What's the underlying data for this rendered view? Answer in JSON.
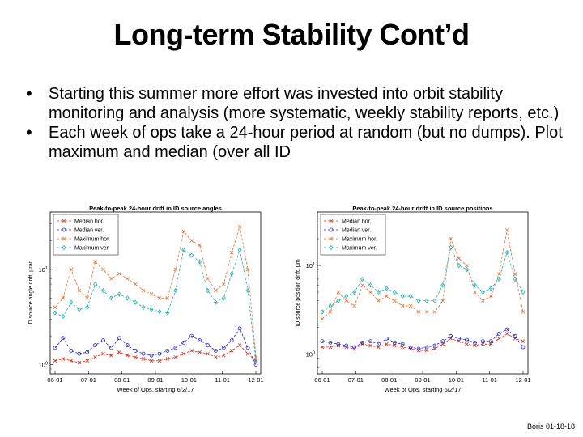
{
  "slide": {
    "title": "Long-term Stability Cont’d",
    "bullets": [
      "Starting this summer more effort was invested into orbit stability monitoring and analysis (more systematic, weekly stability reports, etc.)",
      "Each week of ops take a 24-hour period at random (but no dumps). Plot maximum and median (over all ID"
    ],
    "footer": "Boris 01-18-18"
  },
  "colors": {
    "red": "#d03020",
    "blue": "#2a2ad0",
    "orange": "#e07030",
    "teal": "#20b0b0"
  },
  "chart_data": [
    {
      "type": "line",
      "title": "Peak-to-peak 24-hour drift in ID source angles",
      "xlabel": "Week of Ops, starting 6/2/17",
      "ylabel": "ID source angle drift, µrad",
      "yscale": "log",
      "ylim": [
        0.8,
        40
      ],
      "y_ticks": [
        "10^0",
        "10^1"
      ],
      "x_ticks": [
        "06-01",
        "07-01",
        "08-01",
        "09-01",
        "10-01",
        "11-01",
        "12-01"
      ],
      "legend": "top-left",
      "series": [
        {
          "name": "Median hor.",
          "color": "#d03020",
          "marker": "x",
          "x": [
            0,
            1,
            2,
            3,
            4,
            5,
            6,
            7,
            8,
            9,
            10,
            11,
            12,
            13,
            14,
            15,
            16,
            17,
            18,
            19,
            20,
            21,
            22,
            23,
            24,
            25
          ],
          "values": [
            1.1,
            1.15,
            1.1,
            1.05,
            1.1,
            1.2,
            1.3,
            1.25,
            1.35,
            1.25,
            1.2,
            1.15,
            1.1,
            1.1,
            1.15,
            1.2,
            1.3,
            1.4,
            1.35,
            1.3,
            1.2,
            1.25,
            1.4,
            1.6,
            1.3,
            1.1
          ]
        },
        {
          "name": "Median ver.",
          "color": "#2a2ad0",
          "marker": "o",
          "x": [
            0,
            1,
            2,
            3,
            4,
            5,
            6,
            7,
            8,
            9,
            10,
            11,
            12,
            13,
            14,
            15,
            16,
            17,
            18,
            19,
            20,
            21,
            22,
            23,
            24,
            25
          ],
          "values": [
            1.5,
            1.9,
            1.4,
            1.3,
            1.35,
            1.6,
            1.8,
            1.5,
            1.9,
            1.6,
            1.4,
            1.3,
            1.25,
            1.3,
            1.4,
            1.5,
            1.7,
            2.0,
            1.8,
            1.6,
            1.4,
            1.5,
            1.8,
            2.4,
            1.5,
            1.0
          ]
        },
        {
          "name": "Maximum hor.",
          "color": "#e07030",
          "marker": "x",
          "x": [
            0,
            1,
            2,
            3,
            4,
            5,
            6,
            7,
            8,
            9,
            10,
            11,
            12,
            13,
            14,
            15,
            16,
            17,
            18,
            19,
            20,
            21,
            22,
            23,
            24,
            25
          ],
          "values": [
            4,
            5,
            10,
            6,
            5,
            12,
            10,
            8,
            9,
            8,
            7,
            6,
            5.5,
            5,
            5,
            10,
            25,
            20,
            18,
            8,
            6,
            7,
            15,
            28,
            10,
            1.2
          ]
        },
        {
          "name": "Maximum ver.",
          "color": "#20b0b0",
          "marker": "d",
          "x": [
            0,
            1,
            2,
            3,
            4,
            5,
            6,
            7,
            8,
            9,
            10,
            11,
            12,
            13,
            14,
            15,
            16,
            17,
            18,
            19,
            20,
            21,
            22,
            23,
            24,
            25
          ],
          "values": [
            3.5,
            3.2,
            4.5,
            3.8,
            4,
            7,
            6,
            5,
            5.5,
            5,
            4.5,
            4,
            3.8,
            3.6,
            3.5,
            6,
            16,
            14,
            12,
            6,
            4.5,
            5,
            9,
            16,
            6,
            1.1
          ]
        }
      ]
    },
    {
      "type": "line",
      "title": "Peak-to-peak 24-hour drift in ID source positions",
      "xlabel": "Week of Ops, starting 6/2/17",
      "ylabel": "ID source position drift, µm",
      "yscale": "log",
      "ylim": [
        0.6,
        40
      ],
      "y_ticks": [
        "10^0",
        "10^1"
      ],
      "x_ticks": [
        "06-01",
        "07-01",
        "08-01",
        "09-01",
        "10-01",
        "11-01",
        "12-01"
      ],
      "legend": "top-left",
      "series": [
        {
          "name": "Median hor.",
          "color": "#d03020",
          "marker": "x",
          "x": [
            0,
            1,
            2,
            3,
            4,
            5,
            6,
            7,
            8,
            9,
            10,
            11,
            12,
            13,
            14,
            15,
            16,
            17,
            18,
            19,
            20,
            21,
            22,
            23,
            24,
            25
          ],
          "values": [
            1.2,
            1.2,
            1.25,
            1.2,
            1.15,
            1.3,
            1.25,
            1.2,
            1.3,
            1.25,
            1.2,
            1.15,
            1.1,
            1.1,
            1.15,
            1.3,
            1.5,
            1.4,
            1.3,
            1.25,
            1.3,
            1.3,
            1.5,
            1.7,
            1.5,
            1.4
          ]
        },
        {
          "name": "Median ver.",
          "color": "#2a2ad0",
          "marker": "o",
          "x": [
            0,
            1,
            2,
            3,
            4,
            5,
            6,
            7,
            8,
            9,
            10,
            11,
            12,
            13,
            14,
            15,
            16,
            17,
            18,
            19,
            20,
            21,
            22,
            23,
            24,
            25
          ],
          "values": [
            1.4,
            1.35,
            1.3,
            1.25,
            1.2,
            1.35,
            1.4,
            1.3,
            1.5,
            1.35,
            1.3,
            1.2,
            1.15,
            1.2,
            1.25,
            1.4,
            1.6,
            1.5,
            1.45,
            1.35,
            1.4,
            1.4,
            1.7,
            1.9,
            1.6,
            1.2
          ]
        },
        {
          "name": "Maximum hor.",
          "color": "#e07030",
          "marker": "x",
          "x": [
            0,
            1,
            2,
            3,
            4,
            5,
            6,
            7,
            8,
            9,
            10,
            11,
            12,
            13,
            14,
            15,
            16,
            17,
            18,
            19,
            20,
            21,
            22,
            23,
            24,
            25
          ],
          "values": [
            2.5,
            3,
            5,
            4,
            3.5,
            6,
            5,
            4,
            4.5,
            4,
            3.5,
            3.5,
            3,
            3,
            3,
            4,
            20,
            12,
            10,
            5,
            4,
            4.5,
            8,
            25,
            8,
            3
          ]
        },
        {
          "name": "Maximum ver.",
          "color": "#20b0b0",
          "marker": "d",
          "x": [
            0,
            1,
            2,
            3,
            4,
            5,
            6,
            7,
            8,
            9,
            10,
            11,
            12,
            13,
            14,
            15,
            16,
            17,
            18,
            19,
            20,
            21,
            22,
            23,
            24,
            25
          ],
          "values": [
            3,
            3.5,
            4,
            4.5,
            5,
            7,
            6,
            5,
            5.5,
            5,
            4.5,
            4.5,
            4,
            4,
            4,
            6,
            16,
            10,
            9,
            6,
            5,
            5.5,
            7,
            14,
            7,
            5
          ]
        }
      ]
    }
  ]
}
